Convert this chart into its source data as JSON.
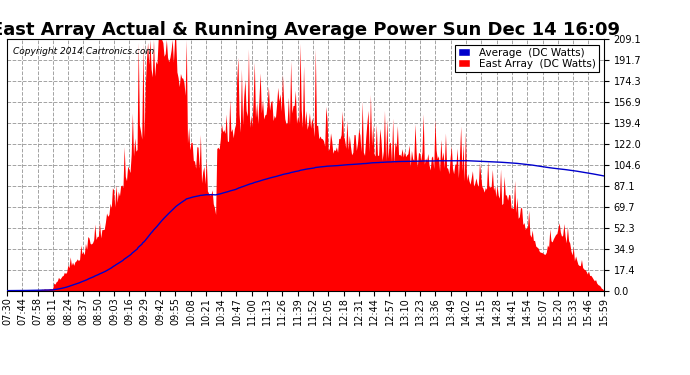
{
  "title": "East Array Actual & Running Average Power Sun Dec 14 16:09",
  "copyright": "Copyright 2014 Cartronics.com",
  "legend_avg": "Average  (DC Watts)",
  "legend_east": "East Array  (DC Watts)",
  "ylim": [
    0,
    209.1
  ],
  "yticks": [
    0.0,
    17.4,
    34.9,
    52.3,
    69.7,
    87.1,
    104.6,
    122.0,
    139.4,
    156.9,
    174.3,
    191.7,
    209.1
  ],
  "bg_color": "#ffffff",
  "plot_bg_color": "#ffffff",
  "grid_color": "#999999",
  "bar_color": "#ff0000",
  "avg_line_color": "#0000cc",
  "x_labels": [
    "07:30",
    "07:44",
    "07:58",
    "08:11",
    "08:24",
    "08:37",
    "08:50",
    "09:03",
    "09:16",
    "09:29",
    "09:42",
    "09:55",
    "10:08",
    "10:21",
    "10:34",
    "10:47",
    "11:00",
    "11:13",
    "11:26",
    "11:39",
    "11:52",
    "12:05",
    "12:18",
    "12:31",
    "12:44",
    "12:57",
    "13:10",
    "13:23",
    "13:36",
    "13:49",
    "14:02",
    "14:15",
    "14:28",
    "14:41",
    "14:54",
    "15:07",
    "15:20",
    "15:33",
    "15:46",
    "15:59"
  ],
  "title_fontsize": 13,
  "tick_fontsize": 7,
  "legend_fontsize": 7.5
}
